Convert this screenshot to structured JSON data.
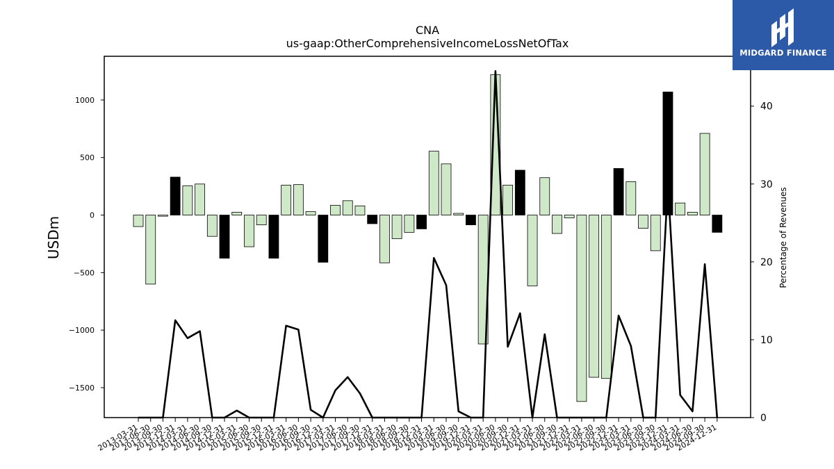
{
  "chart_data": {
    "type": "bar",
    "title": "CNA",
    "subtitle": "us-gaap:OtherComprehensiveIncomeLossNetOfTax",
    "ylabel": "USDm",
    "y2label": "Percentage of Revenues",
    "ylim": [
      -1760,
      1380
    ],
    "y2lim": [
      0,
      46.4
    ],
    "yticks": [
      1000,
      500,
      0,
      -500,
      -1000,
      -1500
    ],
    "ytick_labels": [
      "1000",
      "500",
      "0",
      "−500",
      "−1000",
      "−1500"
    ],
    "y2ticks": [
      0,
      10,
      20,
      30,
      40
    ],
    "y2tick_labels": [
      "0",
      "10",
      "20",
      "30",
      "40"
    ],
    "categories": [
      "2013-03-31",
      "2013-06-30",
      "2013-09-30",
      "2013-12-31",
      "2014-03-31",
      "2014-06-30",
      "2014-09-30",
      "2014-12-31",
      "2015-03-31",
      "2015-06-30",
      "2015-09-30",
      "2015-12-31",
      "2016-03-31",
      "2016-06-30",
      "2016-09-30",
      "2016-12-31",
      "2017-03-31",
      "2017-06-30",
      "2017-09-30",
      "2017-12-31",
      "2018-03-31",
      "2018-06-30",
      "2018-09-30",
      "2018-12-31",
      "2019-03-31",
      "2019-06-30",
      "2019-09-30",
      "2019-12-31",
      "2020-03-31",
      "2020-06-30",
      "2020-09-30",
      "2020-12-31",
      "2021-03-31",
      "2021-06-30",
      "2021-09-30",
      "2021-12-31",
      "2022-03-31",
      "2022-06-30",
      "2022-09-30",
      "2022-12-31",
      "2023-03-31",
      "2023-06-30",
      "2023-09-30",
      "2023-12-31",
      "2024-03-31",
      "2024-06-30",
      "2024-09-30",
      "2024-12-31"
    ],
    "series": [
      {
        "kind": "bar",
        "values": [
          -100,
          -600,
          -10,
          330,
          255,
          270,
          -185,
          -375,
          25,
          -275,
          -85,
          -375,
          260,
          265,
          30,
          -410,
          85,
          125,
          80,
          -75,
          -415,
          -205,
          -150,
          -120,
          555,
          445,
          15,
          -85,
          -1120,
          1220,
          260,
          390,
          -615,
          325,
          -160,
          -25,
          -1620,
          -1410,
          -1420,
          405,
          290,
          -115,
          -310,
          1070,
          105,
          25,
          710,
          -150
        ]
      },
      {
        "kind": "line",
        "axis": "right",
        "values": [
          0,
          0,
          0,
          12.5,
          10.2,
          11.1,
          0,
          0,
          0.9,
          0,
          0,
          0,
          11.8,
          11.3,
          1.0,
          0,
          3.5,
          5.2,
          3.1,
          0,
          0,
          0,
          0,
          0,
          20.5,
          17.0,
          0.8,
          0,
          0,
          44.5,
          9.1,
          13.4,
          0,
          10.7,
          0,
          0,
          0,
          0,
          0,
          13.1,
          9.2,
          0,
          0,
          30.0,
          2.9,
          0.8,
          19.7,
          0
        ]
      }
    ],
    "colors": {
      "positive_bar": "#cfe8c8",
      "negative_bar": "#cfe8c8",
      "highlight_bar": "#000000",
      "bar_edge": "#000000",
      "line": "#000000"
    },
    "highlight_indices": [
      3,
      7,
      11,
      15,
      19,
      23,
      27,
      31,
      39,
      43,
      47
    ]
  },
  "logo": {
    "text": "MIDGARD FINANCE",
    "icon": "midgard-logo-icon"
  }
}
